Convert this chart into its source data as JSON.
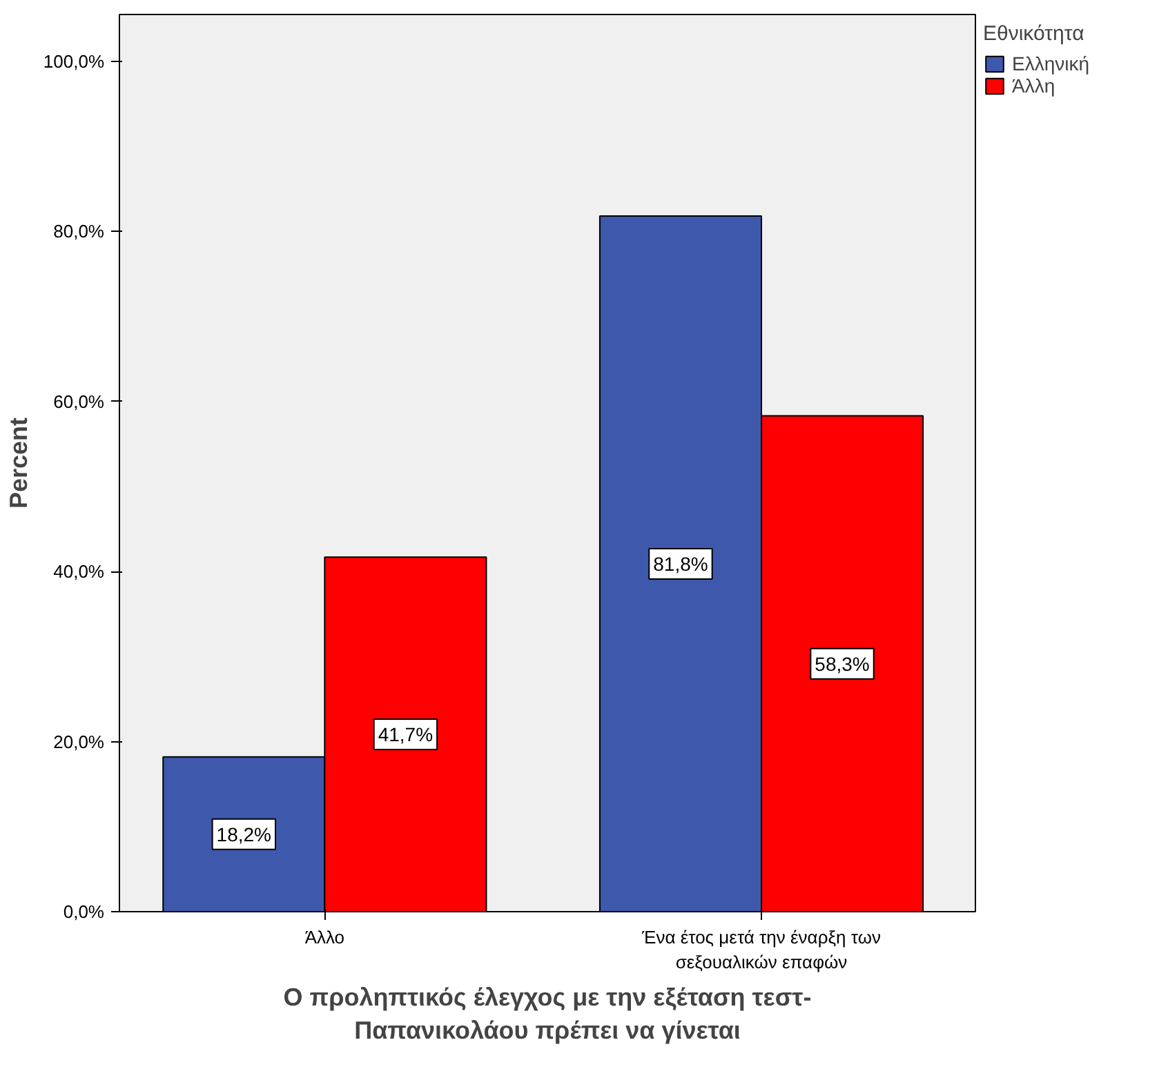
{
  "chart_data": {
    "type": "bar",
    "xlabel": "Ο προληπτικός έλεγχος με την εξέταση τεστ-Παπανικολάου πρέπει να γίνεται",
    "ylabel": "Percent",
    "legend_title": "Εθνικότητα",
    "legend": "top right",
    "grid": false,
    "categories": [
      "Άλλο",
      "Ένα έτος μετά την έναρξη των σεξουαλικών επαφών"
    ],
    "series": [
      {
        "name": "Ελληνική",
        "color": "#3e58ac",
        "values": [
          18.2,
          81.8
        ],
        "value_labels": [
          "18,2%",
          "81,8%"
        ]
      },
      {
        "name": "Άλλη",
        "color": "#ff0000",
        "values": [
          41.7,
          58.3
        ],
        "value_labels": [
          "41,7%",
          "58,3%"
        ]
      }
    ],
    "ylim": [
      0,
      105.5
    ],
    "yticks": [
      {
        "value": 0,
        "label": "0,0%"
      },
      {
        "value": 20,
        "label": "20,0%"
      },
      {
        "value": 40,
        "label": "40,0%"
      },
      {
        "value": 60,
        "label": "60,0%"
      },
      {
        "value": 80,
        "label": "80,0%"
      },
      {
        "value": 100,
        "label": "100,0%"
      }
    ]
  }
}
